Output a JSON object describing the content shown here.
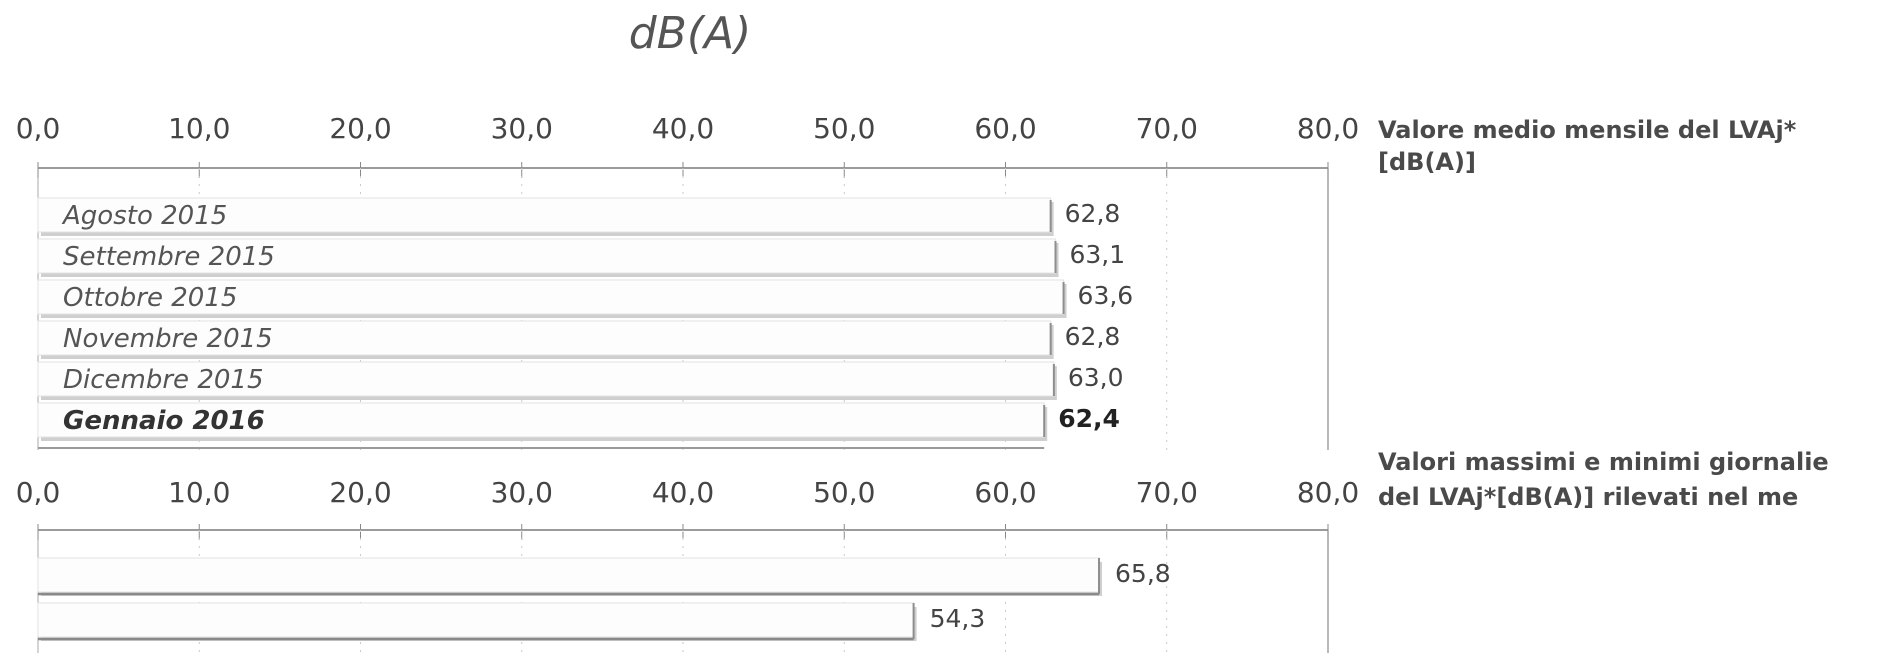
{
  "chart_data": [
    {
      "type": "bar",
      "orientation": "horizontal",
      "unit_title": "dB(A)",
      "legend": [
        "Valore medio mensile del LVAj*",
        "[dB(A)]"
      ],
      "xlim": [
        0,
        80
      ],
      "ticks": [
        "0,0",
        "10,0",
        "20,0",
        "30,0",
        "40,0",
        "50,0",
        "60,0",
        "70,0",
        "80,0"
      ],
      "categories": [
        "Agosto 2015",
        "Settembre 2015",
        "Ottobre 2015",
        "Novembre 2015",
        "Dicembre 2015",
        "Gennaio 2016"
      ],
      "values": [
        62.8,
        63.1,
        63.6,
        62.8,
        63.0,
        62.4
      ],
      "value_labels": [
        "62,8",
        "63,1",
        "63,6",
        "62,8",
        "63,0",
        "62,4"
      ],
      "highlight_index": 5
    },
    {
      "type": "bar",
      "orientation": "horizontal",
      "legend": [
        "Valori massimi e minimi giornalie",
        "del LVAj*[dB(A)] rilevati nel me"
      ],
      "xlim": [
        0,
        80
      ],
      "ticks": [
        "0,0",
        "10,0",
        "20,0",
        "30,0",
        "40,0",
        "50,0",
        "60,0",
        "70,0",
        "80,0"
      ],
      "values": [
        65.8,
        54.3
      ],
      "value_labels": [
        "65,8",
        "54,3"
      ]
    }
  ]
}
